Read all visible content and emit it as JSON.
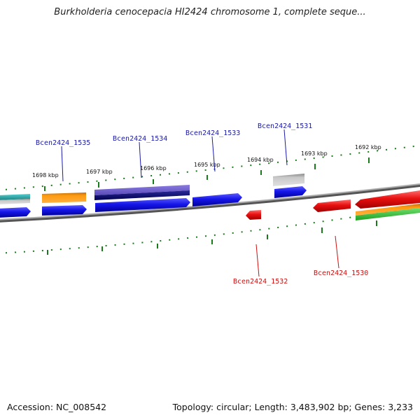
{
  "header": {
    "title": "Burkholderia cenocepacia HI2424 chromosome 1, complete seque..."
  },
  "footer": {
    "accession": "Accession: NC_008542",
    "summary": "Topology: circular; Length: 3,483,902 bp; Genes: 3,233"
  },
  "scale": {
    "ticks": [
      "1698 kbp",
      "1697 kbp",
      "1696 kbp",
      "1695 kbp",
      "1694 kbp",
      "1693 kbp",
      "1692 kbp"
    ]
  },
  "genes": {
    "forward": [
      "Bcen2424_1535",
      "Bcen2424_1534",
      "Bcen2424_1533",
      "Bcen2424_1531"
    ],
    "reverse": [
      "Bcen2424_1532",
      "Bcen2424_1530"
    ]
  },
  "colors": {
    "forward_gene": "#1515e8",
    "reverse_gene": "#e81010",
    "label_forward": "#1a1aa8",
    "label_reverse": "#cc1010",
    "tick": "#1a7a1a",
    "backbone": "#888888",
    "orange_feature": "#ff8c00",
    "purple_feature": "#6a5acd",
    "navy_feature": "#0a0a6e",
    "grey_feature": "#a0a0a0",
    "green_feature": "#33cc33",
    "teal_feature": "#30b0b0"
  }
}
